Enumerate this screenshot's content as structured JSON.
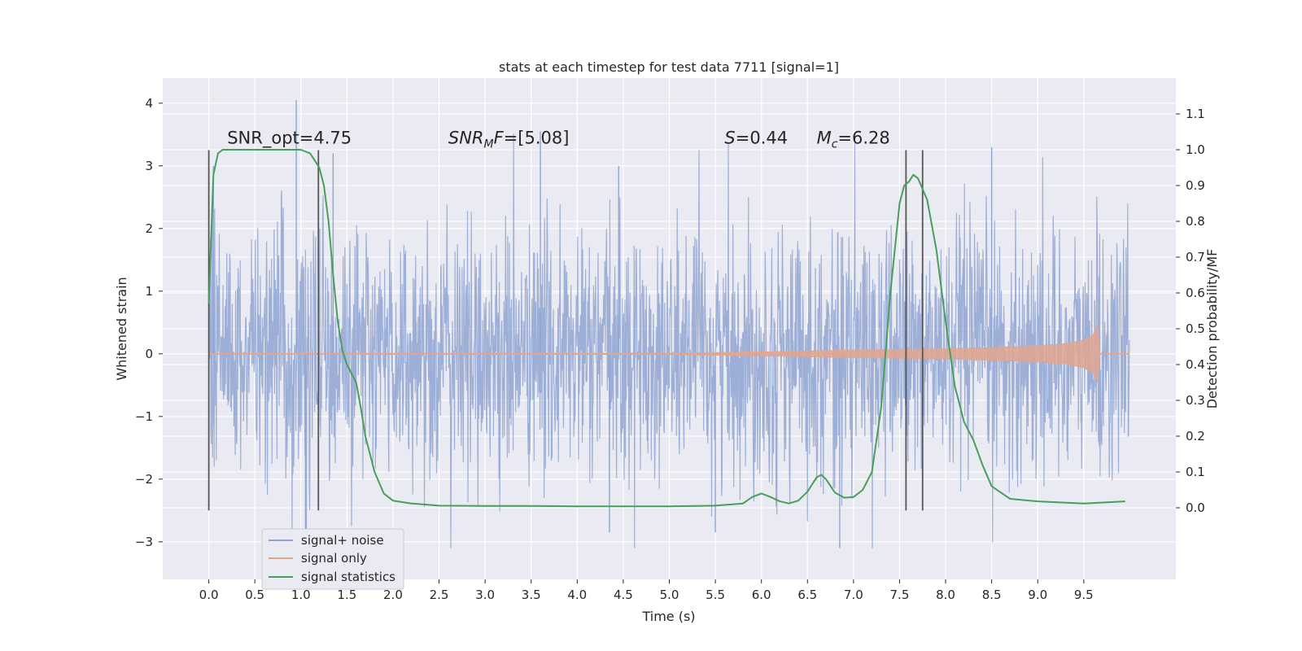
{
  "chart_data": {
    "type": "line",
    "title": "stats at each timestep for test data 7711 [signal=1]",
    "xlabel": "Time (s)",
    "ylabel": "Whitened strain",
    "y2label": "Detection probability/MF",
    "xlim": [
      -0.5,
      10.5
    ],
    "ylim": [
      -3.6,
      4.4
    ],
    "y2lim": [
      -0.2,
      1.2
    ],
    "x_ticks": [
      0.0,
      0.5,
      1.0,
      1.5,
      2.0,
      2.5,
      3.0,
      3.5,
      4.0,
      4.5,
      5.0,
      5.5,
      6.0,
      6.5,
      7.0,
      7.5,
      8.0,
      8.5,
      9.0,
      9.5
    ],
    "x_tick_labels": [
      "0.0",
      "0.5",
      "1.0",
      "1.5",
      "2.0",
      "2.5",
      "3.0",
      "3.5",
      "4.0",
      "4.5",
      "5.0",
      "5.5",
      "6.0",
      "6.5",
      "7.0",
      "7.5",
      "8.0",
      "8.5",
      "9.0",
      "9.5"
    ],
    "y_ticks": [
      4,
      3,
      2,
      1,
      0,
      -1,
      -2,
      -3
    ],
    "y_tick_labels": [
      "4",
      "3",
      "2",
      "1",
      "0",
      "−1",
      "−2",
      "−3"
    ],
    "y2_ticks": [
      1.1,
      1.0,
      0.9,
      0.8,
      0.7,
      0.6,
      0.5,
      0.4,
      0.3,
      0.2,
      0.1,
      0.0
    ],
    "y2_tick_labels": [
      "1.1",
      "1.0",
      "0.9",
      "0.8",
      "0.7",
      "0.6",
      "0.5",
      "0.4",
      "0.3",
      "0.2",
      "0.1",
      "0.0"
    ],
    "grid": true,
    "legend_position": "lower-left",
    "series": [
      {
        "name": "signal+ noise",
        "color": "#8fa5d1",
        "axis": "left",
        "x_range": [
          0.0,
          10.0
        ],
        "typical_spread": 1.0,
        "min": -3.1,
        "max": 4.05
      },
      {
        "name": "signal only",
        "color": "#e0a690",
        "axis": "left",
        "x_range": [
          0.0,
          10.0
        ],
        "envelope_x": [
          0.0,
          5.0,
          6.0,
          7.0,
          8.0,
          8.5,
          9.0,
          9.3,
          9.5,
          9.6,
          9.65,
          9.67,
          10.0
        ],
        "envelope_y": [
          0.005,
          0.01,
          0.03,
          0.06,
          0.08,
          0.1,
          0.13,
          0.16,
          0.22,
          0.3,
          0.45,
          0.0,
          0.0
        ]
      },
      {
        "name": "signal statistics",
        "color": "#4a9e5c",
        "axis": "right",
        "x": [
          0.0,
          0.05,
          0.1,
          0.15,
          0.2,
          0.3,
          0.5,
          0.7,
          0.9,
          1.0,
          1.1,
          1.15,
          1.2,
          1.25,
          1.3,
          1.35,
          1.4,
          1.45,
          1.5,
          1.6,
          1.65,
          1.7,
          1.8,
          1.9,
          2.0,
          2.2,
          2.5,
          3.0,
          3.5,
          4.0,
          4.5,
          5.0,
          5.5,
          5.8,
          5.9,
          6.0,
          6.1,
          6.2,
          6.3,
          6.4,
          6.5,
          6.6,
          6.65,
          6.7,
          6.8,
          6.9,
          7.0,
          7.1,
          7.2,
          7.3,
          7.4,
          7.5,
          7.55,
          7.6,
          7.65,
          7.7,
          7.8,
          7.9,
          8.0,
          8.1,
          8.2,
          8.3,
          8.4,
          8.5,
          8.7,
          9.0,
          9.5,
          9.95
        ],
        "y": [
          0.57,
          0.93,
          0.99,
          1.0,
          1.0,
          1.0,
          1.0,
          1.0,
          1.0,
          1.0,
          0.99,
          0.97,
          0.95,
          0.9,
          0.8,
          0.65,
          0.52,
          0.44,
          0.4,
          0.35,
          0.28,
          0.2,
          0.1,
          0.04,
          0.02,
          0.012,
          0.006,
          0.005,
          0.005,
          0.004,
          0.004,
          0.004,
          0.006,
          0.012,
          0.03,
          0.04,
          0.03,
          0.018,
          0.012,
          0.02,
          0.045,
          0.085,
          0.092,
          0.08,
          0.042,
          0.028,
          0.03,
          0.05,
          0.1,
          0.28,
          0.6,
          0.85,
          0.9,
          0.91,
          0.93,
          0.92,
          0.86,
          0.72,
          0.52,
          0.34,
          0.24,
          0.19,
          0.12,
          0.06,
          0.025,
          0.018,
          0.012,
          0.018
        ]
      }
    ],
    "vertical_markers": [
      0.0,
      1.19,
      7.57,
      7.75
    ],
    "marker_y_range": [
      -2.5,
      3.25
    ],
    "annotations": [
      {
        "text": "SNR_opt=4.75",
        "x": 0.2,
        "y": 3.25,
        "math": false
      },
      {
        "base": "SNR",
        "sub": "M",
        "after": "F=[5.08]",
        "x": 2.6,
        "y": 3.25,
        "math": true
      },
      {
        "base": "S",
        "sub": "",
        "after": "=0.44",
        "x": 5.6,
        "y": 3.25,
        "math": true
      },
      {
        "base": "M",
        "sub": "c",
        "after": "=6.28",
        "x": 6.6,
        "y": 3.25,
        "math": true
      }
    ]
  }
}
